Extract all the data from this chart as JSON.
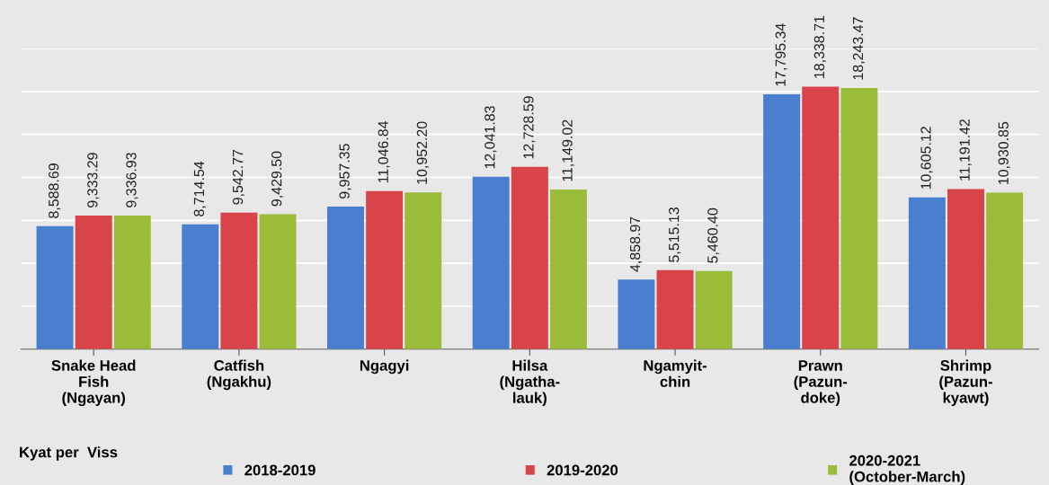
{
  "chart_data": {
    "type": "bar",
    "categories": [
      "Snake Head\nFish\n(Ngayan)",
      "Catfish\n(Ngakhu)",
      "Ngagyi",
      "Hilsa\n(Ngatha-\nlauk)",
      "Ngamyit-\nchin",
      "Prawn\n(Pazun-\ndoke)",
      "Shrimp\n(Pazun-\nkyawt)"
    ],
    "series": [
      {
        "name": "2018-2019",
        "color": "#4a7fd0",
        "values": [
          8588.69,
          8714.54,
          9957.35,
          12041.83,
          4858.97,
          17795.34,
          10605.12
        ],
        "value_labels": [
          "8,588.69",
          "8,714.54",
          "9,957.35",
          "12,041.83",
          "4,858.97",
          "17,795.34",
          "10,605.12"
        ]
      },
      {
        "name": "2019-2020",
        "color": "#d9434a",
        "values": [
          9333.29,
          9542.77,
          11046.84,
          12728.59,
          5515.13,
          18338.71,
          11191.42
        ],
        "value_labels": [
          "9,333.29",
          "9,542.77",
          "11,046.84",
          "12,728.59",
          "5,515.13",
          "18,338.71",
          "11,191.42"
        ]
      },
      {
        "name": "2020-2021\n(October-March)",
        "color": "#9bbb3b",
        "values": [
          9336.93,
          9429.5,
          10952.2,
          11149.02,
          5460.4,
          18243.47,
          10930.85
        ],
        "value_labels": [
          "9,336.93",
          "9,429.50",
          "10,952.20",
          "11,149.02",
          "5,460.40",
          "18,243.47",
          "10,930.85"
        ]
      }
    ],
    "ylim": [
      0,
      21000
    ],
    "yticks": [
      {
        "value": 0,
        "label": null
      },
      {
        "value": 3000,
        "label": null
      },
      {
        "value": 6000,
        "label": null
      },
      {
        "value": 9000,
        "label": null
      },
      {
        "value": 12000,
        "label": null
      },
      {
        "value": 15000,
        "label": null
      },
      {
        "value": 18000,
        "label": null
      },
      {
        "value": 21000,
        "label": null
      }
    ],
    "tick_labels": "x",
    "grid": "y",
    "legend": "bottom",
    "annotations": [
      "Kyat per  Viss"
    ]
  }
}
